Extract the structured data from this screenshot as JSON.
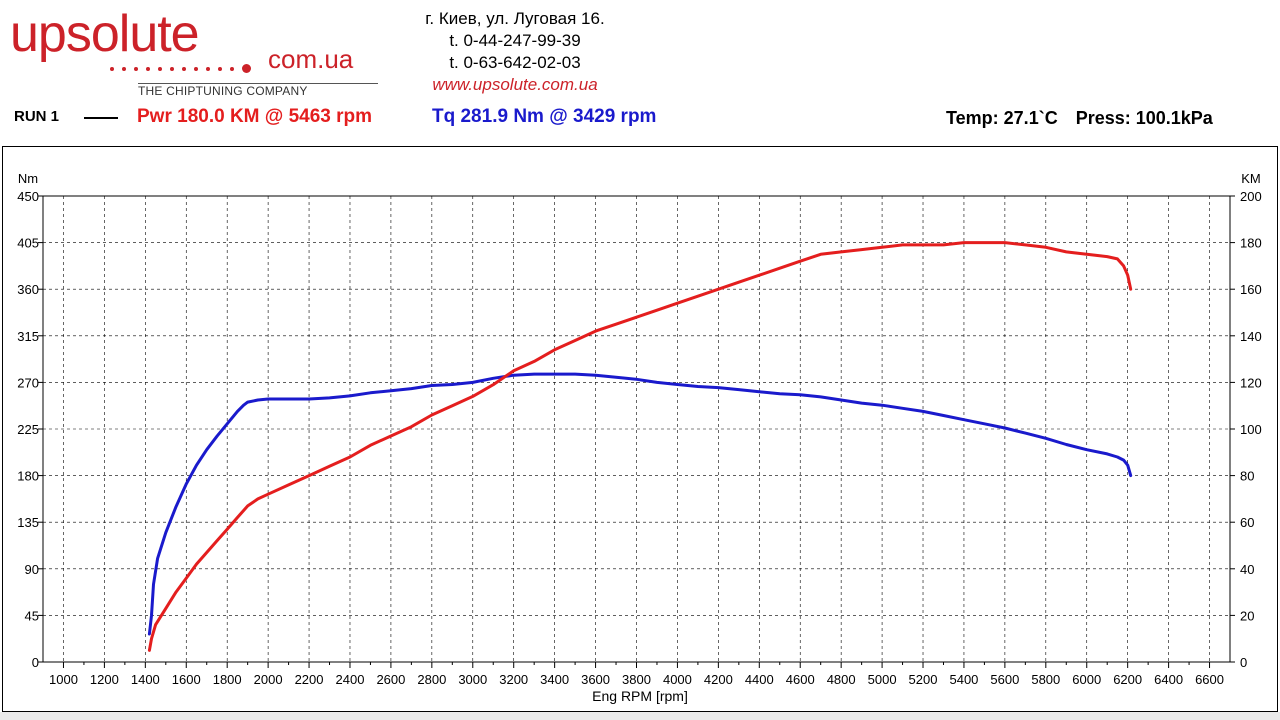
{
  "header": {
    "logo_main": "upsolute",
    "logo_domain": "com.ua",
    "logo_tagline": "THE CHIPTUNING COMPANY",
    "address": "г. Киев, ул. Луговая 16.",
    "phone1": "t. 0-44-247-99-39",
    "phone2": "t. 0-63-642-02-03",
    "website": "www.upsolute.com.ua"
  },
  "run": {
    "label": "RUN 1",
    "power_summary": "Pwr  180.0 KM @ 5463 rpm",
    "torque_summary": "Tq 281.9 Nm @ 3429 rpm",
    "temperature": "Temp: 27.1`C",
    "pressure": "Press: 100.1kPa"
  },
  "colors": {
    "power": "#e41e1e",
    "torque": "#1a1acc",
    "logo": "#cc2229"
  },
  "chart_data": {
    "type": "line",
    "xlabel": "Eng RPM [rpm]",
    "ylabel_left": "Nm",
    "ylabel_right": "KM",
    "xlim": [
      900,
      6700
    ],
    "xticks": [
      1000,
      1200,
      1400,
      1600,
      1800,
      2000,
      2200,
      2400,
      2600,
      2800,
      3000,
      3200,
      3400,
      3600,
      3800,
      4000,
      4200,
      4400,
      4600,
      4800,
      5000,
      5200,
      5400,
      5600,
      5800,
      6000,
      6200,
      6400,
      6600
    ],
    "ylim_left": [
      0,
      450
    ],
    "yticks_left": [
      0,
      45,
      90,
      135,
      180,
      225,
      270,
      315,
      360,
      405,
      450
    ],
    "ylim_right": [
      0,
      200
    ],
    "yticks_right": [
      0,
      20,
      40,
      60,
      80,
      100,
      120,
      140,
      160,
      180,
      200
    ],
    "grid": true,
    "series": [
      {
        "name": "Tq",
        "axis": "left",
        "unit": "Nm",
        "x": [
          1420,
          1430,
          1440,
          1460,
          1500,
          1550,
          1600,
          1650,
          1700,
          1750,
          1800,
          1850,
          1880,
          1900,
          1950,
          2000,
          2100,
          2200,
          2300,
          2400,
          2500,
          2600,
          2700,
          2800,
          2900,
          3000,
          3100,
          3200,
          3300,
          3400,
          3500,
          3600,
          3700,
          3800,
          3900,
          4000,
          4100,
          4200,
          4300,
          4400,
          4500,
          4600,
          4700,
          4800,
          4900,
          5000,
          5100,
          5200,
          5300,
          5400,
          5500,
          5600,
          5700,
          5800,
          5900,
          6000,
          6100,
          6150,
          6180,
          6200,
          6215
        ],
        "values": [
          27,
          45,
          75,
          100,
          125,
          150,
          172,
          190,
          205,
          218,
          230,
          242,
          248,
          251,
          253,
          254,
          254,
          254,
          255,
          257,
          260,
          262,
          264,
          267,
          268,
          270,
          274,
          277,
          278,
          278,
          278,
          277,
          275,
          273,
          270,
          268,
          266,
          265,
          263,
          261,
          259,
          258,
          256,
          253,
          250,
          248,
          245,
          242,
          238,
          234,
          230,
          226,
          221,
          216,
          210,
          205,
          201,
          198,
          195,
          190,
          180
        ]
      },
      {
        "name": "Pwr",
        "axis": "right",
        "unit": "KM",
        "x": [
          1420,
          1430,
          1450,
          1500,
          1550,
          1600,
          1650,
          1700,
          1750,
          1800,
          1850,
          1900,
          1950,
          2000,
          2100,
          2200,
          2300,
          2400,
          2500,
          2600,
          2700,
          2800,
          2900,
          3000,
          3100,
          3200,
          3300,
          3400,
          3500,
          3600,
          3700,
          3800,
          3900,
          4000,
          4100,
          4200,
          4300,
          4400,
          4500,
          4600,
          4700,
          4800,
          4900,
          5000,
          5100,
          5200,
          5300,
          5400,
          5500,
          5600,
          5700,
          5800,
          5900,
          6000,
          6100,
          6150,
          6180,
          6200,
          6215
        ],
        "values": [
          5,
          10,
          16,
          23,
          30,
          36,
          42,
          47,
          52,
          57,
          62,
          67,
          70,
          72,
          76,
          80,
          84,
          88,
          93,
          97,
          101,
          106,
          110,
          114,
          119,
          125,
          129,
          134,
          138,
          142,
          145,
          148,
          151,
          154,
          157,
          160,
          163,
          166,
          169,
          172,
          175,
          176,
          177,
          178,
          179,
          179,
          179,
          180,
          180,
          180,
          179,
          178,
          176,
          175,
          174,
          173,
          170,
          166,
          160
        ]
      }
    ]
  }
}
